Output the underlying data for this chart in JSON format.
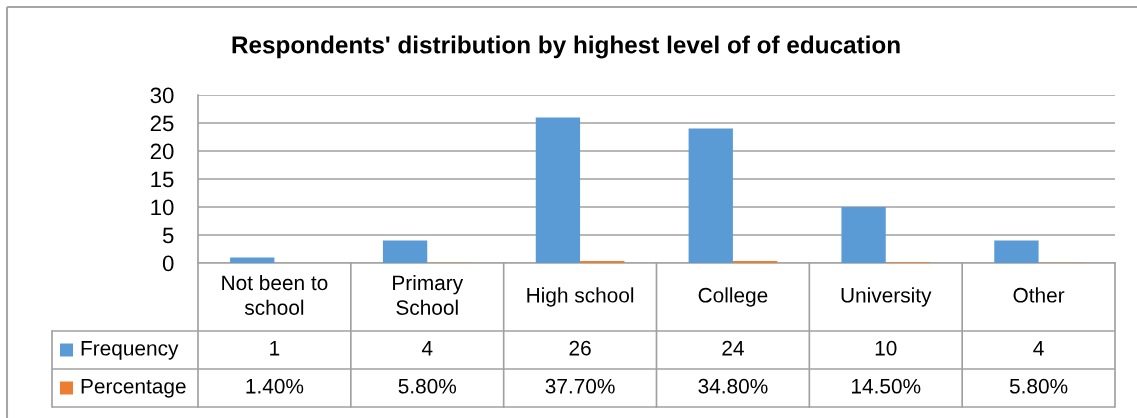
{
  "chart_data": {
    "type": "bar",
    "title": "Respondents' distribution by highest level of of education",
    "categories": [
      "Not been to school",
      "Primary School",
      "High school",
      "College",
      "University",
      "Other"
    ],
    "series": [
      {
        "name": "Frequency",
        "color": "#5b9bd5",
        "values": [
          1,
          4,
          26,
          24,
          10,
          4
        ],
        "value_labels": [
          "1",
          "4",
          "26",
          "24",
          "10",
          "4"
        ]
      },
      {
        "name": "Percentage",
        "color": "#ed7d31",
        "values": [
          0.014,
          0.058,
          0.377,
          0.348,
          0.145,
          0.058
        ],
        "value_labels": [
          "1.40%",
          "5.80%",
          "37.70%",
          "34.80%",
          "14.50%",
          "5.80%"
        ]
      }
    ],
    "ylim": [
      0,
      30
    ],
    "yticks": [
      0,
      5,
      10,
      15,
      20,
      25,
      30
    ],
    "grid": "y",
    "legend": "bottom"
  }
}
